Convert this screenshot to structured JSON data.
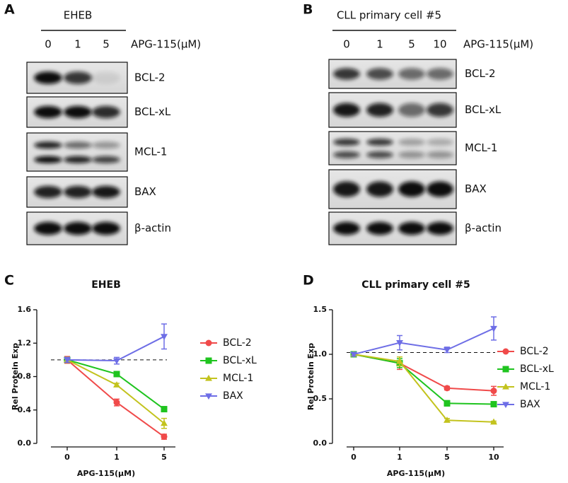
{
  "blots": [
    {
      "panel_label": "A",
      "title": "EHEB",
      "lanes": [
        "0",
        "1",
        "5"
      ],
      "treatment": "APG-115(μM)",
      "proteins": [
        "BCL-2",
        "BCL-xL",
        "MCL-1",
        "BAX",
        "β-actin"
      ]
    },
    {
      "panel_label": "B",
      "title": "CLL primary cell #5",
      "lanes": [
        "0",
        "1",
        "5",
        "10"
      ],
      "treatment": "APG-115(μM)",
      "proteins": [
        "BCL-2",
        "BCL-xL",
        "MCL-1",
        "BAX",
        "β-actin"
      ]
    }
  ],
  "chart_data": [
    {
      "type": "line",
      "panel_label": "C",
      "title": "EHEB",
      "x_label": "APG-115(μM)",
      "y_label": "Rel Protein Exp",
      "categories": [
        "0",
        "1",
        "5"
      ],
      "ylim": [
        0,
        1.6
      ],
      "yticks": [
        {
          "value": 0,
          "label": "0.0"
        },
        0.4,
        0.8,
        1.2,
        1.6
      ],
      "hline": 1,
      "series": [
        {
          "name": "BCL-2",
          "color": "#f04a4a",
          "marker": "circle",
          "values": [
            1,
            0.49,
            0.08
          ],
          "errors": [
            0.04,
            0.04,
            0.03
          ]
        },
        {
          "name": "BCL-xL",
          "color": "#1fc41f",
          "marker": "square",
          "values": [
            1,
            0.83,
            0.41
          ],
          "errors": [
            0.03,
            0.03,
            0.03
          ]
        },
        {
          "name": "MCL-1",
          "color": "#c3c31e",
          "marker": "triangle-up",
          "values": [
            1,
            0.7,
            0.24
          ],
          "errors": [
            0.03,
            0.02,
            0.06
          ]
        },
        {
          "name": "BAX",
          "color": "#6e6ee6",
          "marker": "triangle-down",
          "values": [
            1,
            0.99,
            1.28
          ],
          "errors": [
            0.03,
            0.04,
            0.15
          ]
        }
      ]
    },
    {
      "type": "line",
      "panel_label": "D",
      "title": "CLL primary cell #5",
      "x_label": "APG-115(μM)",
      "y_label": "Rel Protein Exp",
      "categories": [
        "0",
        "1",
        "5",
        "10"
      ],
      "ylim": [
        0,
        1.5
      ],
      "yticks": [
        {
          "value": 0,
          "label": "0.0"
        },
        0.5,
        {
          "value": 1,
          "label": "1.0"
        },
        1.5
      ],
      "hline": 1.02,
      "series": [
        {
          "name": "BCL-2",
          "color": "#f04a4a",
          "marker": "circle",
          "values": [
            1,
            0.9,
            0.62,
            0.59
          ],
          "errors": [
            0.02,
            0.07,
            0.02,
            0.05
          ]
        },
        {
          "name": "BCL-xL",
          "color": "#1fc41f",
          "marker": "square",
          "values": [
            1,
            0.9,
            0.45,
            0.44
          ],
          "errors": [
            0.02,
            0.05,
            0.03,
            0.02
          ]
        },
        {
          "name": "MCL-1",
          "color": "#c3c31e",
          "marker": "triangle-up",
          "values": [
            1,
            0.92,
            0.26,
            0.24
          ],
          "errors": [
            0.02,
            0.05,
            0.02,
            0.01
          ]
        },
        {
          "name": "BAX",
          "color": "#6e6ee6",
          "marker": "triangle-down",
          "values": [
            1,
            1.13,
            1.05,
            1.29
          ],
          "errors": [
            0.02,
            0.08,
            0.03,
            0.13
          ]
        }
      ]
    }
  ]
}
